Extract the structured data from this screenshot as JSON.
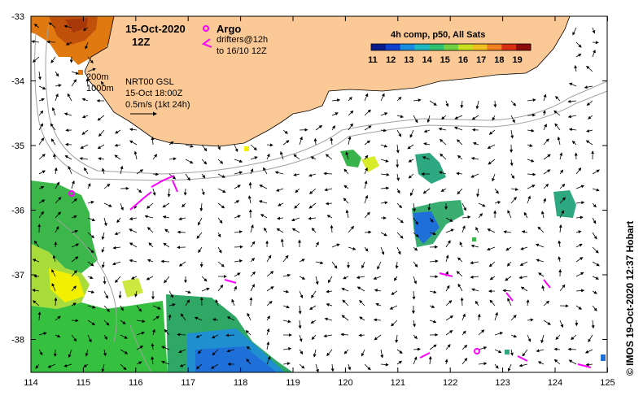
{
  "title": {
    "date": "15-Oct-2020",
    "hour": "12Z"
  },
  "legend": {
    "argo_label": "Argo",
    "drifters_line1": "drifters@12h",
    "drifters_line2": "to 16/10 12Z",
    "argo_color": "#ff00ff"
  },
  "colorbar": {
    "title": "4h comp, p50, All Sats",
    "ticks": [
      "11",
      "12",
      "13",
      "14",
      "15",
      "16",
      "17",
      "18",
      "19"
    ]
  },
  "isobaths": {
    "depth1": "200m",
    "depth2": "1000m"
  },
  "currents": {
    "line1": "NRT00 GSL",
    "line2": "15-Oct 18:00Z",
    "scale_label": "0.5m/s (1kt 24h)"
  },
  "credit": "©  IMOS 19-Oct-2020 12:37 Hobart",
  "axes": {
    "lon_ticks": [
      "114",
      "115",
      "116",
      "117",
      "118",
      "119",
      "120",
      "121",
      "122",
      "123",
      "124",
      "125"
    ],
    "lat_ticks": [
      "-33",
      "-34",
      "-35",
      "-36",
      "-37",
      "-38"
    ]
  },
  "colors": {
    "land": "#fbc996",
    "drifter": "#ff00ff"
  }
}
